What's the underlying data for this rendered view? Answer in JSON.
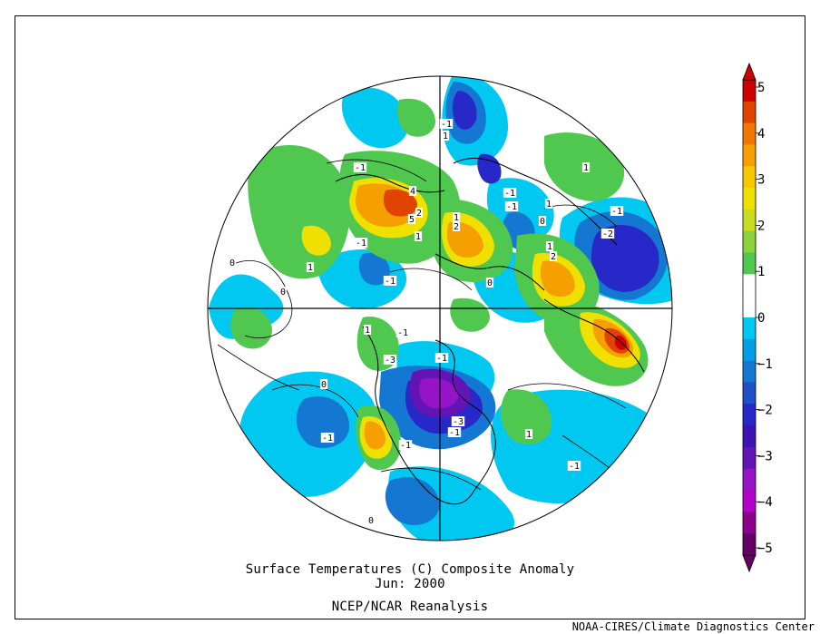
{
  "figure": {
    "title_line1": "Surface Temperatures (C)   Composite Anomaly",
    "title_line2": "Jun: 2000",
    "source": "NCEP/NCAR Reanalysis",
    "credit": "NOAA-CIRES/Climate Diagnostics Center"
  },
  "colorbar": {
    "labels": [
      "5",
      "4",
      "3",
      "2",
      "1",
      "0",
      "−1",
      "−2",
      "−3",
      "−4",
      "−5"
    ],
    "colors": [
      "#cc0000",
      "#e04400",
      "#f07800",
      "#f5a000",
      "#f5c800",
      "#f0e000",
      "#c8dc20",
      "#8cd23c",
      "#50c850",
      "#ffffff",
      "#ffffff",
      "#00c8f0",
      "#00a0e6",
      "#1478d2",
      "#1e50c8",
      "#2828c8",
      "#3c14b4",
      "#6414b4",
      "#9614c8",
      "#b400c8",
      "#8c008c",
      "#640064"
    ]
  },
  "map_labels": [
    "-1",
    "1",
    "-1",
    "4",
    "5",
    "1",
    "-1",
    "1",
    "2",
    "2",
    "-1",
    "1",
    "-1",
    "-2",
    "1",
    "2",
    "-1",
    "-1",
    "1",
    "0",
    "1",
    "-1",
    "-1",
    "1",
    "-3",
    "-1",
    "-3",
    "-1",
    "1",
    "-1",
    "-1",
    "0",
    "0",
    "0",
    "0",
    "0"
  ]
}
